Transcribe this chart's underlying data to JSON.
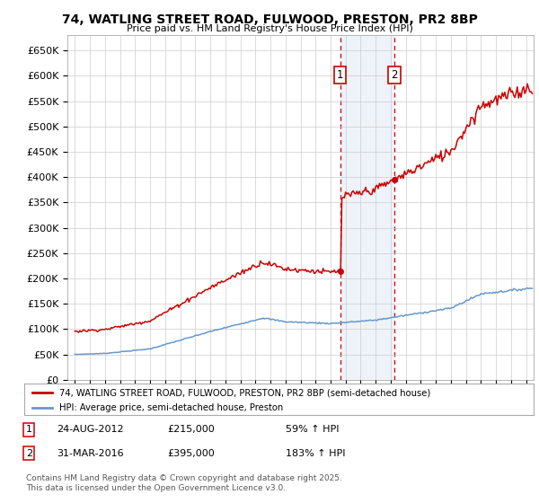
{
  "title": "74, WATLING STREET ROAD, FULWOOD, PRESTON, PR2 8BP",
  "subtitle": "Price paid vs. HM Land Registry's House Price Index (HPI)",
  "ylabel_ticks": [
    "£0",
    "£50K",
    "£100K",
    "£150K",
    "£200K",
    "£250K",
    "£300K",
    "£350K",
    "£400K",
    "£450K",
    "£500K",
    "£550K",
    "£600K",
    "£650K"
  ],
  "ytick_values": [
    0,
    50000,
    100000,
    150000,
    200000,
    250000,
    300000,
    350000,
    400000,
    450000,
    500000,
    550000,
    600000,
    650000
  ],
  "ylim": [
    0,
    680000
  ],
  "sale1_date_num": 2012.64,
  "sale1_price": 215000,
  "sale1_label": "1",
  "sale1_hpi_pct": "59% ↑ HPI",
  "sale1_date_str": "24-AUG-2012",
  "sale2_date_num": 2016.25,
  "sale2_price": 395000,
  "sale2_label": "2",
  "sale2_hpi_pct": "183% ↑ HPI",
  "sale2_date_str": "31-MAR-2016",
  "red_color": "#cc0000",
  "blue_color": "#6699cc",
  "shade_color": "#ccddf0",
  "grid_color": "#cccccc",
  "background_color": "#ffffff",
  "legend_label_red": "74, WATLING STREET ROAD, FULWOOD, PRESTON, PR2 8BP (semi-detached house)",
  "legend_label_blue": "HPI: Average price, semi-detached house, Preston",
  "footer": "Contains HM Land Registry data © Crown copyright and database right 2025.\nThis data is licensed under the Open Government Licence v3.0.",
  "xlim_start": 1994.5,
  "xlim_end": 2025.5
}
